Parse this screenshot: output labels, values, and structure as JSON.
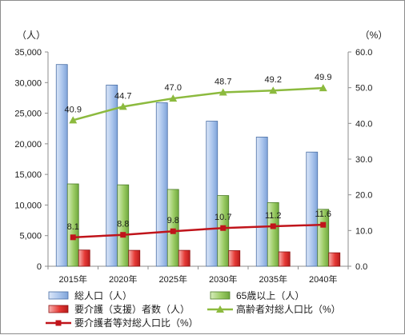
{
  "chart_data": {
    "type": "bar",
    "categories": [
      "2015年",
      "2020年",
      "2025年",
      "2030年",
      "2035年",
      "2040年"
    ],
    "y_left": {
      "unit": "（人）",
      "range": [
        0,
        35000
      ],
      "ticks": [
        "0",
        "5,000",
        "10,000",
        "15,000",
        "20,000",
        "25,000",
        "30,000",
        "35,000"
      ]
    },
    "y_right": {
      "unit": "（%）",
      "range": [
        0,
        60
      ],
      "ticks": [
        "0.0",
        "10.0",
        "20.0",
        "30.0",
        "40.0",
        "50.0",
        "60.0"
      ]
    },
    "grid": false,
    "legend_position": "bottom",
    "series": [
      {
        "name": "総人口（人）",
        "kind": "bar",
        "axis": "left",
        "color": "#a9c4ec",
        "values": [
          32950,
          29600,
          26700,
          23700,
          21100,
          18650
        ]
      },
      {
        "name": "65歳以上（人）",
        "kind": "bar",
        "axis": "left",
        "color": "#9ccc65",
        "values": [
          13450,
          13300,
          12550,
          11550,
          10400,
          9300
        ]
      },
      {
        "name": "要介護（支援）者数（人）",
        "kind": "bar",
        "axis": "left",
        "color": "#e53935",
        "values": [
          2650,
          2600,
          2600,
          2550,
          2350,
          2200
        ]
      },
      {
        "name": "高齢者対総人口比（%）",
        "kind": "line",
        "axis": "right",
        "color": "#8cba3e",
        "marker": "triangle",
        "values": [
          40.9,
          44.7,
          47.0,
          48.7,
          49.2,
          49.9
        ],
        "labels": [
          "40.9",
          "44.7",
          "47.0",
          "48.7",
          "49.2",
          "49.9"
        ]
      },
      {
        "name": "要介護者等対総人口比（%）",
        "kind": "line",
        "axis": "right",
        "color": "#c0141b",
        "marker": "square",
        "values": [
          8.1,
          8.8,
          9.8,
          10.7,
          11.2,
          11.6
        ],
        "labels": [
          "8.1",
          "8.8",
          "9.8",
          "10.7",
          "11.2",
          "11.6"
        ]
      }
    ]
  }
}
